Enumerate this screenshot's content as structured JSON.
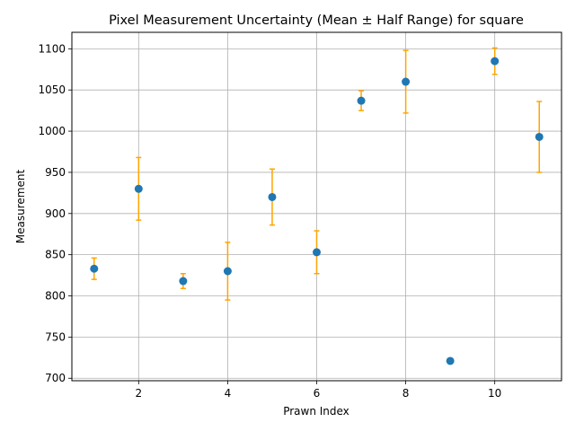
{
  "chart_data": {
    "type": "scatter",
    "title": "Pixel Measurement Uncertainty (Mean ± Half Range) for square",
    "xlabel": "Prawn Index",
    "ylabel": "Measurement",
    "xlim": [
      0.5,
      11.5
    ],
    "ylim": [
      697,
      1120
    ],
    "xticks": [
      2,
      4,
      6,
      8,
      10
    ],
    "yticks": [
      700,
      750,
      800,
      850,
      900,
      950,
      1000,
      1050,
      1100
    ],
    "grid": true,
    "marker_color": "#1f77b4",
    "errorbar_color": "#ffa500",
    "points": [
      {
        "x": 1,
        "y": 833,
        "yerr": 13
      },
      {
        "x": 2,
        "y": 930,
        "yerr": 38
      },
      {
        "x": 3,
        "y": 818,
        "yerr": 9
      },
      {
        "x": 4,
        "y": 830,
        "yerr": 35
      },
      {
        "x": 5,
        "y": 920,
        "yerr": 34
      },
      {
        "x": 6,
        "y": 853,
        "yerr": 26
      },
      {
        "x": 7,
        "y": 1037,
        "yerr": 12
      },
      {
        "x": 8,
        "y": 1060,
        "yerr": 38
      },
      {
        "x": 9,
        "y": 721,
        "yerr": 2
      },
      {
        "x": 10,
        "y": 1085,
        "yerr": 16
      },
      {
        "x": 11,
        "y": 993,
        "yerr": 43
      }
    ]
  }
}
